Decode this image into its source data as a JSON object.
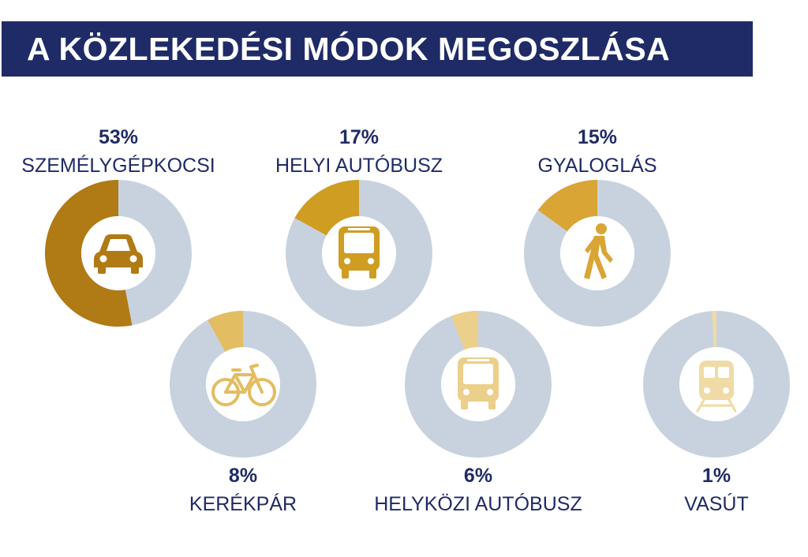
{
  "title": "A KÖZLEKEDÉSI MÓDOK MEGOSZLÁSA",
  "colors": {
    "title_bg": "#1f2b66",
    "text": "#1f2b66",
    "track": "#c8d2de"
  },
  "chart_data": {
    "type": "pie",
    "items": [
      {
        "label": "SZEMÉLYGÉPKOCSI",
        "percent_label": "53%",
        "value": 53,
        "color": "#b07a14",
        "icon": "car-icon"
      },
      {
        "label": "HELYI AUTÓBUSZ",
        "percent_label": "17%",
        "value": 17,
        "color": "#cf9d22",
        "icon": "bus-icon"
      },
      {
        "label": "GYALOGLÁS",
        "percent_label": "15%",
        "value": 15,
        "color": "#d9a534",
        "icon": "pedestrian-icon"
      },
      {
        "label": "KERÉKPÁR",
        "percent_label": "8%",
        "value": 8,
        "color": "#e3bd62",
        "icon": "bicycle-icon"
      },
      {
        "label": "HELYKÖZI AUTÓBUSZ",
        "percent_label": "6%",
        "value": 6,
        "color": "#eccf8b",
        "icon": "coach-icon"
      },
      {
        "label": "VASÚT",
        "percent_label": "1%",
        "value": 1,
        "color": "#f0dba6",
        "icon": "train-icon"
      }
    ]
  }
}
